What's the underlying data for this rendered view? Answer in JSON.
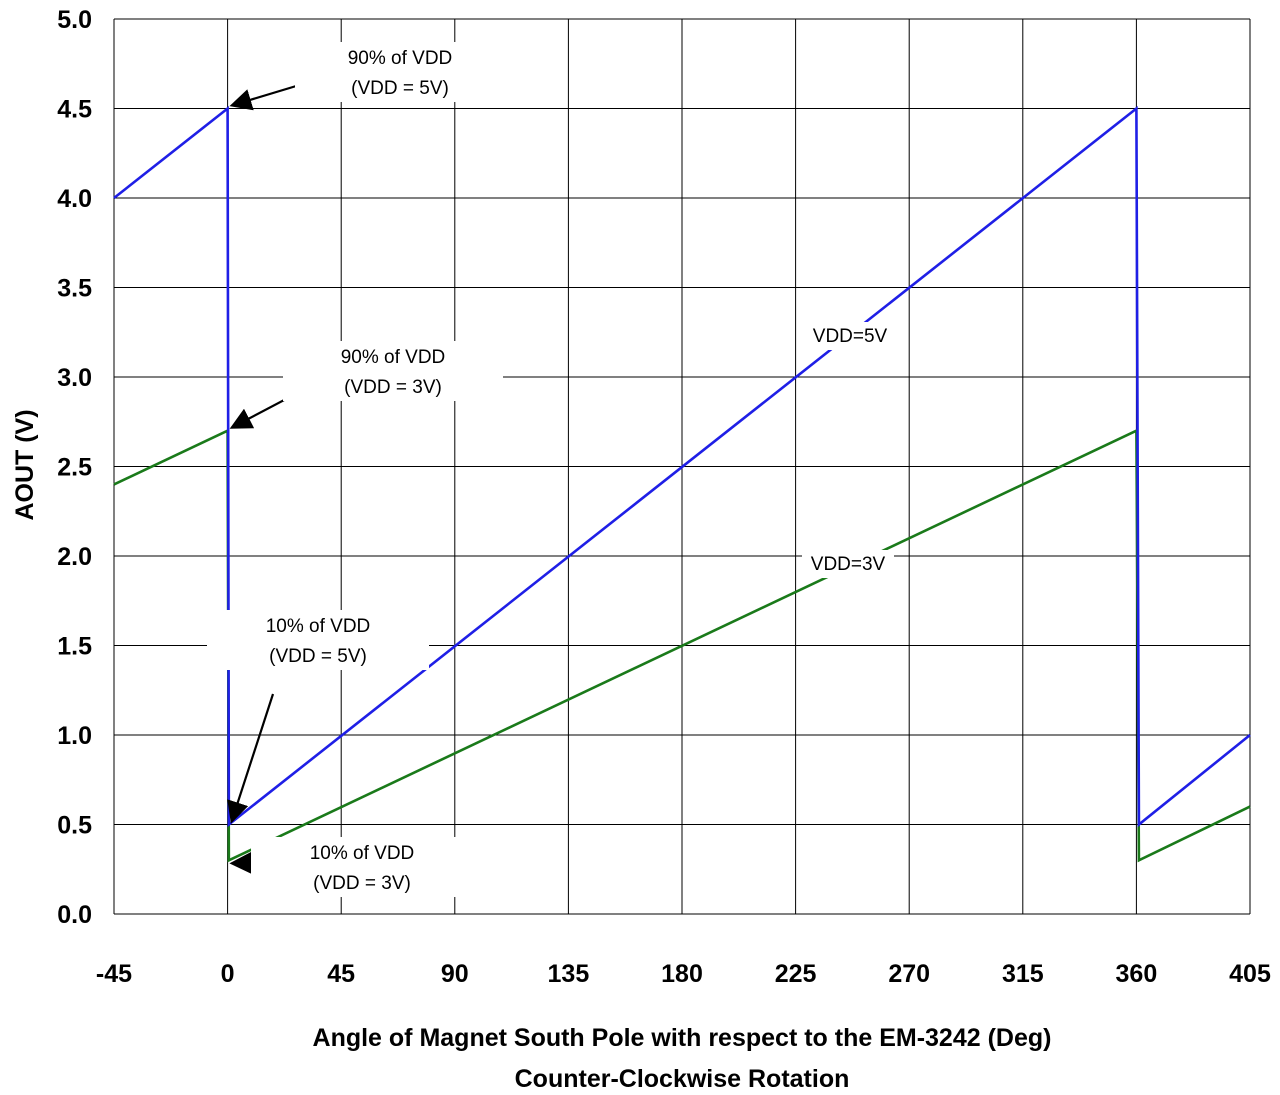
{
  "chart_data": {
    "type": "line",
    "title": "",
    "xlabel": "Angle of Magnet South Pole with respect to the EM-3242  (Deg)",
    "xlabel2": "Counter-Clockwise Rotation",
    "ylabel": "AOUT (V)",
    "xlim": [
      -45,
      405
    ],
    "ylim": [
      0.0,
      5.0
    ],
    "grid": true,
    "x_ticks": [
      "-45",
      "0",
      "45",
      "90",
      "135",
      "180",
      "225",
      "270",
      "315",
      "360",
      "405"
    ],
    "y_ticks": [
      "0.0",
      "0.5",
      "1.0",
      "1.5",
      "2.0",
      "2.5",
      "3.0",
      "3.5",
      "4.0",
      "4.5",
      "5.0"
    ],
    "series": [
      {
        "name": "VDD=5V",
        "color": "#1f1fe6",
        "x": [
          -45,
          0,
          0.5,
          360,
          361,
          405
        ],
        "y": [
          4.0,
          4.5,
          0.5,
          4.5,
          0.5,
          1.0
        ]
      },
      {
        "name": "VDD=3V",
        "color": "#1a7a1a",
        "x": [
          -45,
          0,
          0.5,
          360,
          361,
          405
        ],
        "y": [
          2.4,
          2.7,
          0.3,
          2.7,
          0.3,
          0.6
        ]
      }
    ],
    "annotations": [
      {
        "lines": [
          "90% of VDD",
          "(VDD = 5V)"
        ],
        "arrow_to": {
          "x": 0,
          "y": 4.5
        }
      },
      {
        "lines": [
          "90% of VDD",
          "(VDD = 3V)"
        ],
        "arrow_to": {
          "x": 0,
          "y": 2.7
        }
      },
      {
        "lines": [
          "10% of VDD",
          "(VDD = 5V)"
        ],
        "arrow_to": {
          "x": 0,
          "y": 0.5
        }
      },
      {
        "lines": [
          "10% of VDD",
          "(VDD = 3V)"
        ],
        "arrow_to": {
          "x": 0,
          "y": 0.3
        }
      }
    ]
  }
}
